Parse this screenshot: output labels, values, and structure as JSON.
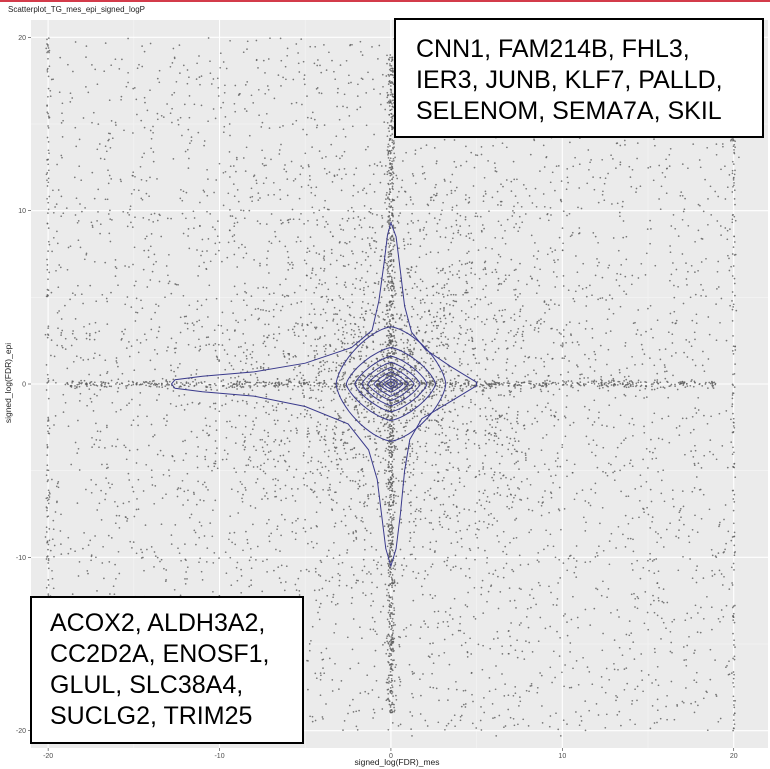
{
  "chart_data": {
    "type": "scatter",
    "title": "Scatterplot_TG_mes_epi_signed_logP",
    "xlabel": "signed_log(FDR)_mes",
    "ylabel": "signed_log(FDR)_epi",
    "xlim": [
      -21,
      22
    ],
    "ylim": [
      -21,
      21
    ],
    "x_ticks": [
      -20,
      -10,
      0,
      10,
      20
    ],
    "y_ticks": [
      -20,
      -10,
      0,
      10,
      20
    ],
    "x_tick_labels": [
      "-20",
      "-10",
      "0",
      "10",
      "20"
    ],
    "y_tick_labels": [
      "-20",
      "-10",
      "0",
      "10",
      "20"
    ],
    "grid": true,
    "point_color": "#5a5a5a",
    "contour_color": "#3a3a8c",
    "panel_color": "#ebebeb",
    "density_contours": [
      {
        "level": 1,
        "points": [
          [
            0,
            9.3
          ],
          [
            0.3,
            8.5
          ],
          [
            0.55,
            6.5
          ],
          [
            0.8,
            4.5
          ],
          [
            1.2,
            3
          ],
          [
            2,
            2
          ],
          [
            3.5,
            1
          ],
          [
            5,
            0.1
          ],
          [
            5,
            -0.1
          ],
          [
            3.5,
            -1
          ],
          [
            1.8,
            -2
          ],
          [
            1.1,
            -3.2
          ],
          [
            0.8,
            -5
          ],
          [
            0.55,
            -7.5
          ],
          [
            0.3,
            -9.5
          ],
          [
            0,
            -10.5
          ],
          [
            -0.3,
            -9.5
          ],
          [
            -0.55,
            -7.5
          ],
          [
            -0.8,
            -5.5
          ],
          [
            -1.3,
            -3.8
          ],
          [
            -2.5,
            -2.3
          ],
          [
            -5,
            -1.3
          ],
          [
            -8,
            -0.7
          ],
          [
            -11,
            -0.45
          ],
          [
            -12.6,
            -0.25
          ],
          [
            -12.8,
            0
          ],
          [
            -12.6,
            0.25
          ],
          [
            -11,
            0.45
          ],
          [
            -8,
            0.7
          ],
          [
            -5,
            1.2
          ],
          [
            -2.3,
            2.1
          ],
          [
            -1.1,
            3.1
          ],
          [
            -0.7,
            4.8
          ],
          [
            -0.4,
            7
          ],
          [
            -0.2,
            8.6
          ],
          [
            0,
            9.3
          ]
        ]
      },
      {
        "level": 2,
        "rx": 3.2,
        "ry": 3.3,
        "sharp": 1.5
      },
      {
        "level": 3,
        "rx": 2.6,
        "ry": 2.1,
        "sharp": 1.4
      },
      {
        "level": 4,
        "rx": 2.1,
        "ry": 1.6,
        "sharp": 1.35
      },
      {
        "level": 5,
        "rx": 1.7,
        "ry": 1.25,
        "sharp": 1.3
      },
      {
        "level": 6,
        "rx": 1.35,
        "ry": 0.95,
        "sharp": 1.25
      },
      {
        "level": 7,
        "rx": 1.0,
        "ry": 0.7,
        "sharp": 1.2
      },
      {
        "level": 8,
        "rx": 0.7,
        "ry": 0.48,
        "sharp": 1.15
      },
      {
        "level": 9,
        "rx": 0.45,
        "ry": 0.3,
        "sharp": 1.1
      },
      {
        "level": 10,
        "rx": 0.22,
        "ry": 0.15,
        "sharp": 1.05
      }
    ],
    "annotations": [
      {
        "position": "top-right",
        "lines": [
          "CNN1, FAM214B, FHL3,",
          "IER3, JUNB, KLF7, PALLD,",
          "SELENOM, SEMA7A, SKIL"
        ]
      },
      {
        "position": "bottom-left",
        "lines": [
          "ACOX2, ALDH3A2,",
          "CC2D2A, ENOSF1,",
          "GLUL, SLC38A4,",
          "SUCLG2, TRIM25"
        ]
      }
    ]
  }
}
